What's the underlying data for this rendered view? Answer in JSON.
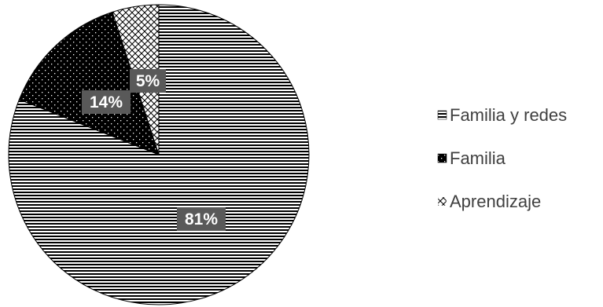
{
  "chart_data": {
    "type": "pie",
    "title": "",
    "slices": [
      {
        "name": "Familia y redes",
        "value": 81,
        "label": "81%",
        "pattern": "horizontal-lines"
      },
      {
        "name": "Familia",
        "value": 14,
        "label": "14%",
        "pattern": "dots-on-black"
      },
      {
        "name": "Aprendizaje",
        "value": 5,
        "label": "5%",
        "pattern": "crosshatch"
      }
    ],
    "legend": {
      "position": "right",
      "entries": [
        "Familia y redes",
        "Familia",
        "Aprendizaje"
      ]
    },
    "colors": {
      "stroke": "#000000",
      "label_background": "#595959",
      "label_text": "#ffffff",
      "legend_text": "#404040"
    }
  }
}
